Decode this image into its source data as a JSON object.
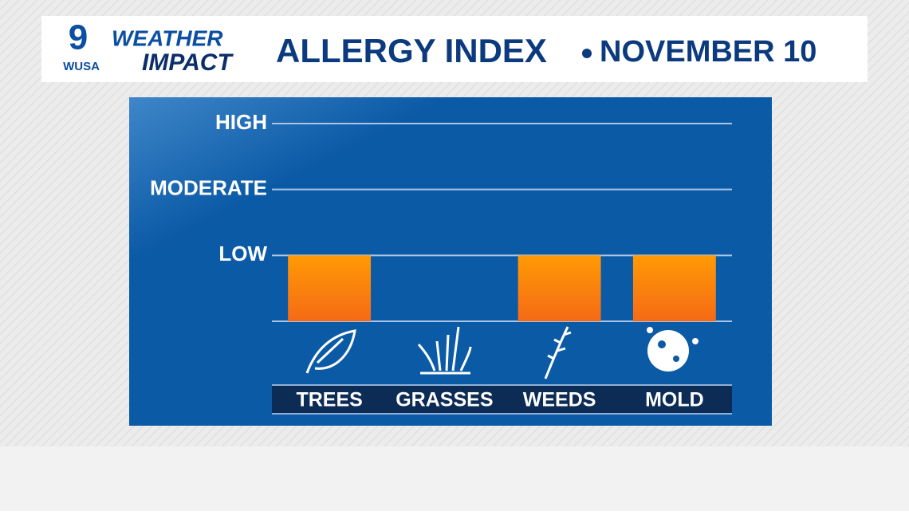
{
  "header": {
    "logo_number": "9",
    "logo_text": "WUSA",
    "brand_top": "WEATHER",
    "brand_bottom": "IMPACT"
  },
  "chart_data": {
    "type": "bar",
    "title": "ALLERGY INDEX",
    "subtitle": "NOVEMBER 10",
    "categories": [
      "TREES",
      "GRASSES",
      "WEEDS",
      "MOLD"
    ],
    "values": [
      1,
      0,
      1,
      1
    ],
    "color": "#ff8a0c",
    "ylim": [
      0,
      3
    ],
    "yticks": [
      {
        "value": 1,
        "label": "LOW"
      },
      {
        "value": 2,
        "label": "MODERATE"
      },
      {
        "value": 3,
        "label": "HIGH"
      }
    ],
    "grid": true
  }
}
